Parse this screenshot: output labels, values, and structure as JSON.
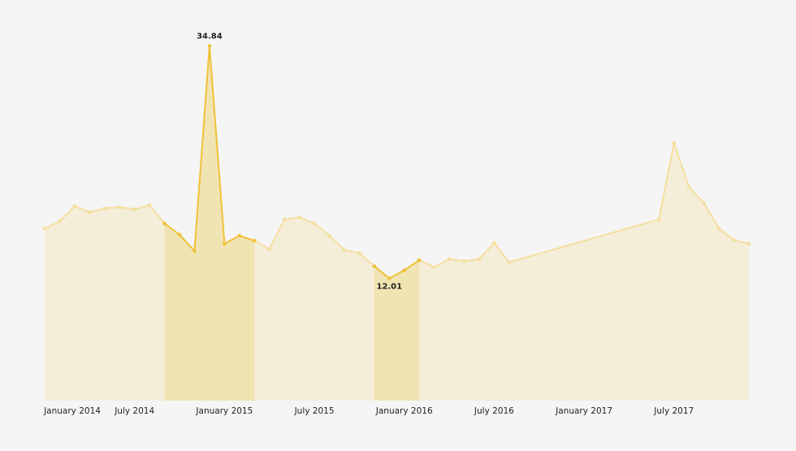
{
  "chart_data": {
    "type": "area",
    "x": [
      "2014-01",
      "2014-02",
      "2014-03",
      "2014-04",
      "2014-05",
      "2014-06",
      "2014-07",
      "2014-08",
      "2014-09",
      "2014-10",
      "2014-11",
      "2014-12",
      "2015-01",
      "2015-02",
      "2015-03",
      "2015-04",
      "2015-05",
      "2015-06",
      "2015-07",
      "2015-08",
      "2015-09",
      "2015-10",
      "2015-11",
      "2015-12",
      "2016-01",
      "2016-02",
      "2016-03",
      "2016-04",
      "2016-05",
      "2016-06",
      "2016-07",
      "2016-08",
      "2017-06",
      "2017-07",
      "2017-08",
      "2017-09",
      "2017-10",
      "2017-11",
      "2017-12"
    ],
    "values": [
      16.9,
      17.6,
      19.1,
      18.5,
      18.9,
      19.0,
      18.8,
      19.2,
      17.4,
      16.3,
      14.7,
      34.84,
      15.4,
      16.2,
      15.7,
      14.9,
      17.8,
      18.0,
      17.4,
      16.2,
      14.8,
      14.5,
      13.2,
      12.01,
      12.8,
      13.8,
      13.1,
      13.9,
      13.7,
      13.9,
      15.5,
      13.6,
      17.8,
      25.3,
      21.0,
      19.4,
      16.9,
      15.8,
      15.4
    ],
    "xlim": [
      "2014-01",
      "2017-12"
    ],
    "xticks": [
      {
        "value": "2014-01",
        "label": "January 2014"
      },
      {
        "value": "2014-07",
        "label": "July 2014"
      },
      {
        "value": "2015-01",
        "label": "January 2015"
      },
      {
        "value": "2015-07",
        "label": "July 2015"
      },
      {
        "value": "2016-01",
        "label": "January 2016"
      },
      {
        "value": "2016-07",
        "label": "July 2016"
      },
      {
        "value": "2017-01",
        "label": "January 2017"
      },
      {
        "value": "2017-07",
        "label": "July 2017"
      }
    ],
    "ylim": [
      0,
      35
    ],
    "color": "#f5dfa0",
    "area_color": "#f4edd8",
    "highlight_color": "#f0c23c",
    "highlight_area_color": "#f1e4b3",
    "highlights": [
      [
        "2014-09",
        "2015-03"
      ],
      [
        "2015-11",
        "2016-02"
      ]
    ]
  }
}
